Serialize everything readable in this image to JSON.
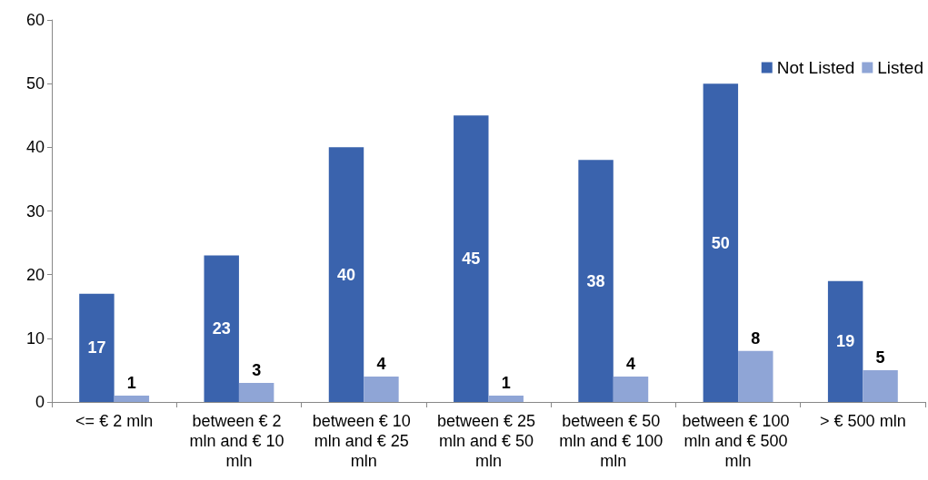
{
  "chart_data": {
    "type": "bar",
    "categories": [
      "<= € 2 mln",
      "between € 2 mln and € 10 mln",
      "between € 10 mln and € 25 mln",
      "between € 25 mln and € 50 mln",
      "between € 50 mln and € 100 mln",
      "between € 100 mln and € 500 mln",
      "> € 500 mln"
    ],
    "series": [
      {
        "name": "Not Listed",
        "color": "#3a63ad",
        "values": [
          17,
          23,
          40,
          45,
          38,
          50,
          19
        ]
      },
      {
        "name": "Listed",
        "color": "#8fa5d6",
        "values": [
          1,
          3,
          4,
          1,
          4,
          8,
          5
        ]
      }
    ],
    "ylim": [
      0,
      60
    ],
    "yticks": [
      0,
      10,
      20,
      30,
      40,
      50,
      60
    ],
    "grid": false,
    "legend": "top right",
    "data_labels": true
  }
}
